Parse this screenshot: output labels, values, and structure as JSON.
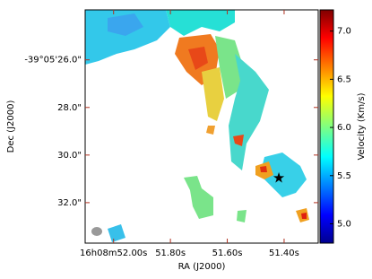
{
  "chart_data": {
    "type": "image",
    "xlabel": "RA (J2000)",
    "ylabel": "Dec (J2000)",
    "xlim": [
      52.1,
      51.28
    ],
    "xticks": [
      {
        "value": 52.0,
        "label": "16h08m52.00s"
      },
      {
        "value": 51.8,
        "label": "51.80s"
      },
      {
        "value": 51.6,
        "label": "51.60s"
      },
      {
        "value": 51.4,
        "label": "51.40s"
      }
    ],
    "ylim": [
      33.7,
      23.9
    ],
    "yticks": [
      {
        "value": 26,
        "label": "-39°05'26.0\""
      },
      {
        "value": 28,
        "label": "28.0\""
      },
      {
        "value": 30,
        "label": "30.0\""
      },
      {
        "value": 32,
        "label": "32.0\""
      }
    ],
    "colorbar": {
      "label": "Velocity (Km/s)",
      "lim": [
        4.8,
        7.22
      ],
      "ticks": [
        {
          "value": 5,
          "label": "5.0"
        },
        {
          "value": 5.5,
          "label": "5.5"
        },
        {
          "value": 6,
          "label": "6.0"
        },
        {
          "value": 6.5,
          "label": "6.5"
        },
        {
          "value": 7,
          "label": "7.0"
        }
      ]
    }
  }
}
